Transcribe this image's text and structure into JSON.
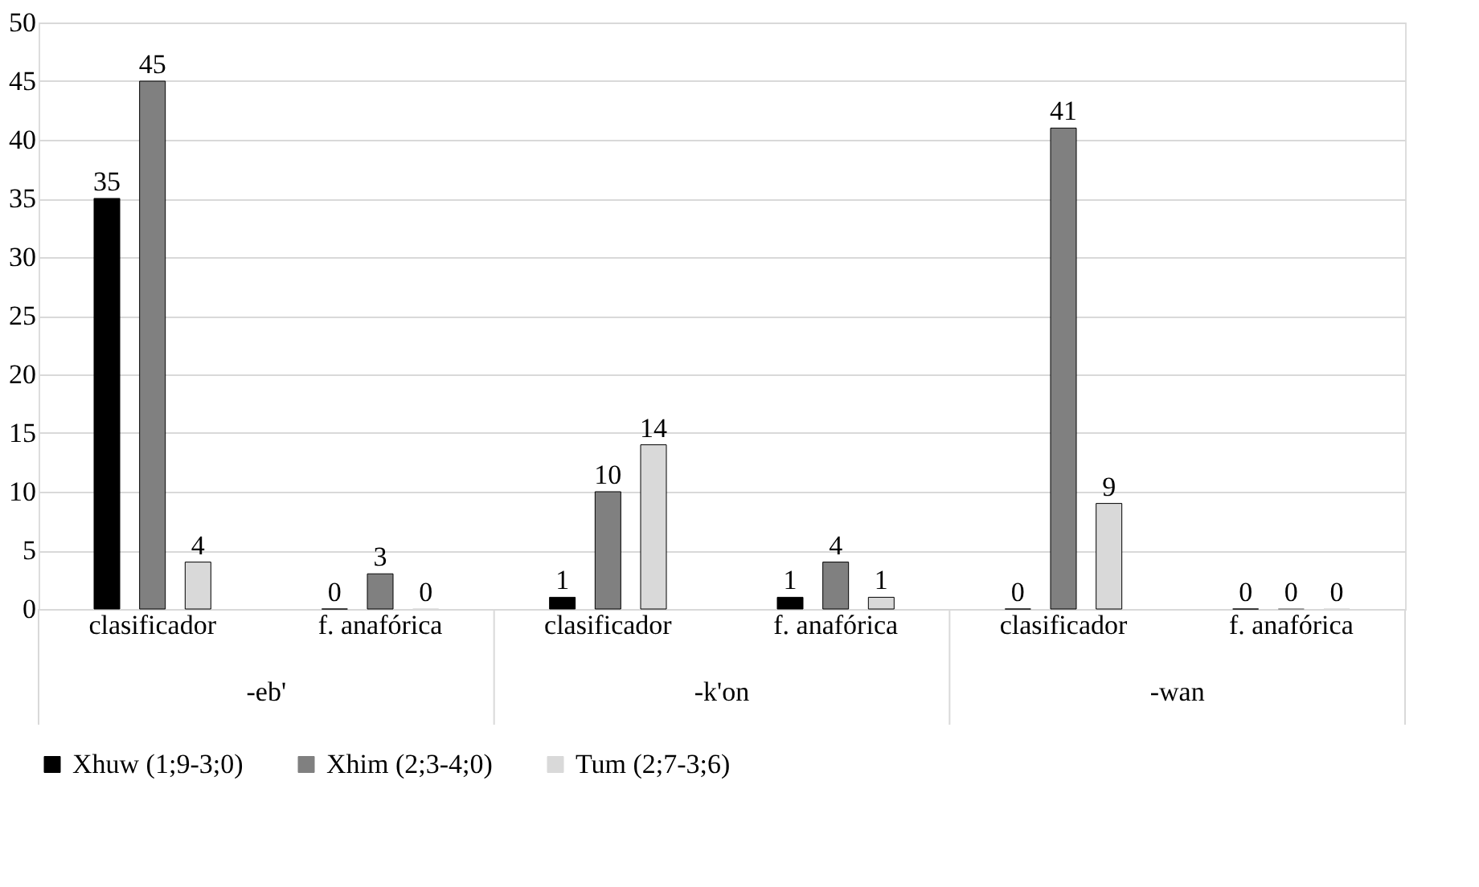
{
  "chart_data": {
    "type": "bar",
    "categories": [
      "clasificador",
      "f. anafórica",
      "clasificador",
      "f. anafórica",
      "clasificador",
      "f. anafórica"
    ],
    "series": [
      {
        "name": "Xhuw (1;9-3;0)",
        "color": "#000000",
        "values": [
          35,
          0,
          1,
          1,
          0,
          0
        ]
      },
      {
        "name": "Xhim (2;3-4;0)",
        "color": "#808080",
        "values": [
          45,
          3,
          10,
          4,
          41,
          0
        ]
      },
      {
        "name": "Tum (2;7-3;6)",
        "color": "#d9d9d9",
        "values": [
          4,
          0,
          14,
          1,
          9,
          0
        ]
      }
    ],
    "annotations": [
      "-eb'",
      "-k'on",
      "-wan"
    ],
    "ylim": [
      0,
      50
    ],
    "yticks": [
      0,
      5,
      10,
      15,
      20,
      25,
      30,
      35,
      40,
      45,
      50
    ],
    "grid": "y",
    "legend": "bottom",
    "data_labels": true
  }
}
